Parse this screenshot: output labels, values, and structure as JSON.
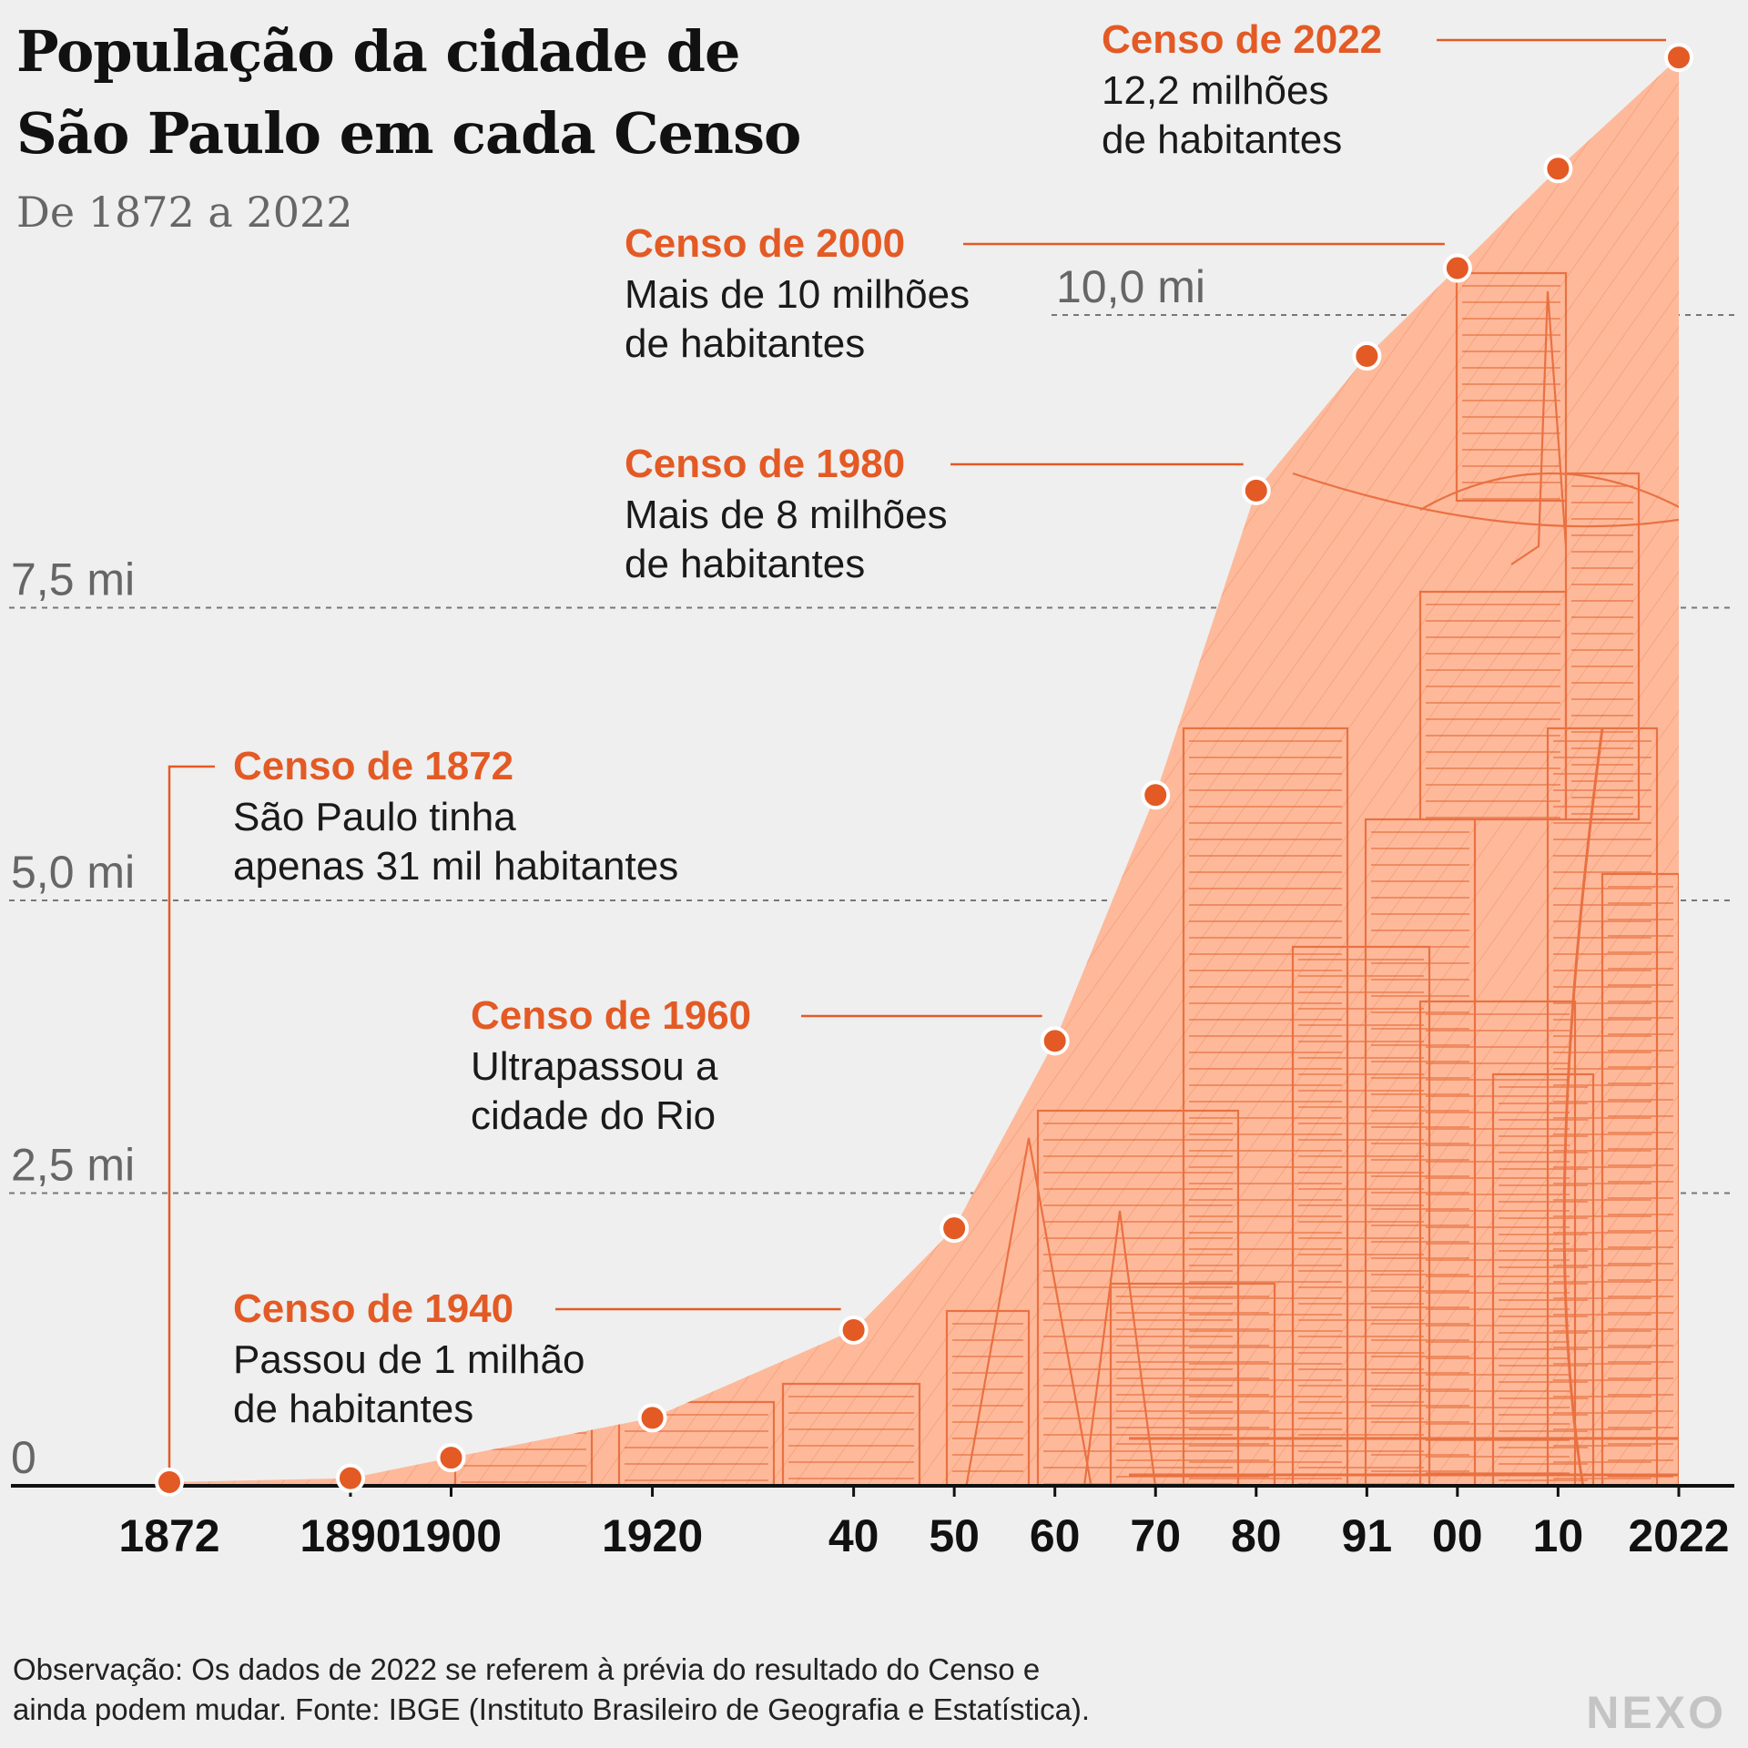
{
  "title_line1": "População da cidade de",
  "title_line2": "São Paulo em cada Censo",
  "subtitle": "De 1872 a 2022",
  "note_line1": "Observação: Os dados de 2022 se referem à prévia do resultado do Censo e",
  "note_line2": "ainda podem mudar. Fonte: IBGE (Instituto Brasileiro de Geografia e Estatística).",
  "logo": "NEXO",
  "colors": {
    "accent": "#e35a25",
    "fill": "#fdb99a",
    "background": "#efefef"
  },
  "chart_data": {
    "type": "area",
    "x": [
      1872,
      1890,
      1900,
      1920,
      1940,
      1950,
      1960,
      1970,
      1980,
      1991,
      2000,
      2010,
      2022
    ],
    "x_tick_labels": [
      "1872",
      "1890",
      "1900",
      "1920",
      "40",
      "50",
      "60",
      "70",
      "80",
      "91",
      "00",
      "10",
      "2022"
    ],
    "series": [
      {
        "values": [
          0.031,
          0.065,
          0.24,
          0.58,
          1.33,
          2.2,
          3.8,
          5.9,
          8.5,
          9.65,
          10.4,
          11.25,
          12.2
        ]
      }
    ],
    "y_unit": "milhões de habitantes",
    "ylim": [
      0,
      12.6
    ],
    "y_ticks": [
      {
        "value": 0,
        "label": "0"
      },
      {
        "value": 2.5,
        "label": "2,5 mi"
      },
      {
        "value": 5.0,
        "label": "5,0 mi"
      },
      {
        "value": 7.5,
        "label": "7,5 mi"
      },
      {
        "value": 10.0,
        "label": "10,0 mi"
      }
    ],
    "grid": true,
    "annotations": [
      {
        "year": 2022,
        "title": "Censo de 2022",
        "lines": [
          "12,2 milhões",
          "de habitantes"
        ]
      },
      {
        "year": 2000,
        "title": "Censo de 2000",
        "lines": [
          "Mais de 10 milhões",
          "de habitantes"
        ]
      },
      {
        "year": 1980,
        "title": "Censo de 1980",
        "lines": [
          "Mais de 8 milhões",
          "de habitantes"
        ]
      },
      {
        "year": 1872,
        "title": "Censo de 1872",
        "lines": [
          "São Paulo tinha",
          "apenas 31 mil habitantes"
        ]
      },
      {
        "year": 1960,
        "title": "Censo de 1960",
        "lines": [
          "Ultrapassou a",
          "cidade do Rio"
        ]
      },
      {
        "year": 1940,
        "title": "Censo de 1940",
        "lines": [
          "Passou de 1 milhão",
          "de habitantes"
        ]
      }
    ]
  }
}
